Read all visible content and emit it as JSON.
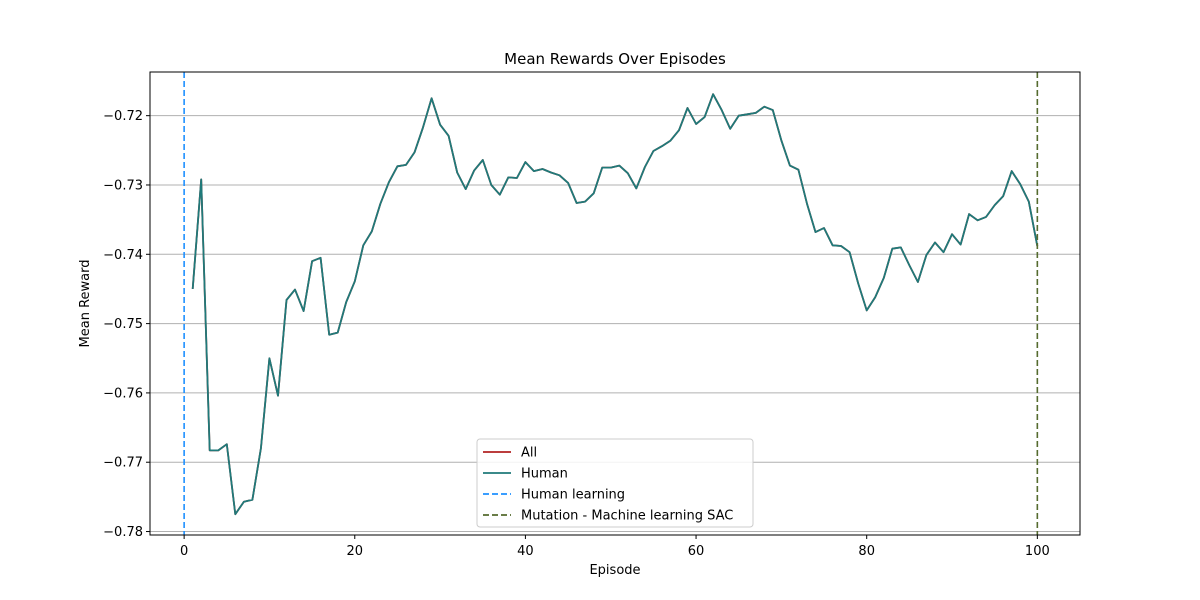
{
  "chart_data": {
    "type": "line",
    "title": "Mean Rewards Over Episodes",
    "xlabel": "Episode",
    "ylabel": "Mean Reward",
    "xlim": [
      -4,
      105
    ],
    "ylim": [
      -0.7805,
      -0.7137
    ],
    "xticks": [
      0,
      20,
      40,
      60,
      80,
      100
    ],
    "yticks": [
      -0.78,
      -0.77,
      -0.76,
      -0.75,
      -0.74,
      -0.73,
      -0.72
    ],
    "ytick_labels": [
      "−0.78",
      "−0.77",
      "−0.76",
      "−0.75",
      "−0.74",
      "−0.73",
      "−0.72"
    ],
    "grid": "horizontal",
    "legend_position": "lower center",
    "series": [
      {
        "name": "All",
        "color": "#b22222",
        "style": "solid",
        "x": [
          1,
          2,
          3,
          4,
          5,
          6,
          7,
          8,
          9,
          10,
          11,
          12,
          13,
          14,
          15,
          16,
          17,
          18,
          19,
          20,
          21,
          22,
          23,
          24,
          25,
          26,
          27,
          28,
          29,
          30,
          31,
          32,
          33,
          34,
          35,
          36,
          37,
          38,
          39,
          40,
          41,
          42,
          43,
          44,
          45,
          46,
          47,
          48,
          49,
          50,
          51,
          52,
          53,
          54,
          55,
          56,
          57,
          58,
          59,
          60,
          61,
          62,
          63,
          64,
          65,
          66,
          67,
          68,
          69,
          70,
          71,
          72,
          73,
          74,
          75,
          76,
          77,
          78,
          79,
          80,
          81,
          82,
          83,
          84,
          85,
          86,
          87,
          88,
          89,
          90,
          91,
          92,
          93,
          94,
          95,
          96,
          97,
          98,
          99,
          100
        ],
        "y": [
          -0.745,
          -0.7292,
          -0.7683,
          -0.7683,
          -0.7674,
          -0.7775,
          -0.7757,
          -0.7754,
          -0.768,
          -0.755,
          -0.7604,
          -0.7466,
          -0.7451,
          -0.7482,
          -0.741,
          -0.7405,
          -0.7516,
          -0.7513,
          -0.7469,
          -0.7439,
          -0.7387,
          -0.7367,
          -0.7327,
          -0.7296,
          -0.7273,
          -0.7271,
          -0.7253,
          -0.7217,
          -0.7175,
          -0.7213,
          -0.7229,
          -0.7282,
          -0.7306,
          -0.7279,
          -0.7264,
          -0.73,
          -0.7314,
          -0.7289,
          -0.729,
          -0.7267,
          -0.728,
          -0.7277,
          -0.7282,
          -0.7286,
          -0.7297,
          -0.7326,
          -0.7324,
          -0.7312,
          -0.7275,
          -0.7275,
          -0.7272,
          -0.7283,
          -0.7305,
          -0.7274,
          -0.7251,
          -0.7244,
          -0.7236,
          -0.7221,
          -0.7189,
          -0.7212,
          -0.7202,
          -0.7169,
          -0.7192,
          -0.7219,
          -0.72,
          -0.7198,
          -0.7196,
          -0.7187,
          -0.7192,
          -0.7236,
          -0.7272,
          -0.7278,
          -0.7327,
          -0.7368,
          -0.7362,
          -0.7387,
          -0.7388,
          -0.7397,
          -0.7442,
          -0.7481,
          -0.7462,
          -0.7434,
          -0.7392,
          -0.739,
          -0.7416,
          -0.744,
          -0.7401,
          -0.7383,
          -0.7397,
          -0.7371,
          -0.7386,
          -0.7342,
          -0.7351,
          -0.7346,
          -0.7329,
          -0.7316,
          -0.728,
          -0.7299,
          -0.7324,
          -0.7388
        ]
      },
      {
        "name": "Human",
        "color": "#1f7a7a",
        "style": "solid",
        "x": [
          1,
          2,
          3,
          4,
          5,
          6,
          7,
          8,
          9,
          10,
          11,
          12,
          13,
          14,
          15,
          16,
          17,
          18,
          19,
          20,
          21,
          22,
          23,
          24,
          25,
          26,
          27,
          28,
          29,
          30,
          31,
          32,
          33,
          34,
          35,
          36,
          37,
          38,
          39,
          40,
          41,
          42,
          43,
          44,
          45,
          46,
          47,
          48,
          49,
          50,
          51,
          52,
          53,
          54,
          55,
          56,
          57,
          58,
          59,
          60,
          61,
          62,
          63,
          64,
          65,
          66,
          67,
          68,
          69,
          70,
          71,
          72,
          73,
          74,
          75,
          76,
          77,
          78,
          79,
          80,
          81,
          82,
          83,
          84,
          85,
          86,
          87,
          88,
          89,
          90,
          91,
          92,
          93,
          94,
          95,
          96,
          97,
          98,
          99,
          100
        ],
        "y": [
          -0.745,
          -0.7292,
          -0.7683,
          -0.7683,
          -0.7674,
          -0.7775,
          -0.7757,
          -0.7754,
          -0.768,
          -0.755,
          -0.7604,
          -0.7466,
          -0.7451,
          -0.7482,
          -0.741,
          -0.7405,
          -0.7516,
          -0.7513,
          -0.7469,
          -0.7439,
          -0.7387,
          -0.7367,
          -0.7327,
          -0.7296,
          -0.7273,
          -0.7271,
          -0.7253,
          -0.7217,
          -0.7175,
          -0.7213,
          -0.7229,
          -0.7282,
          -0.7306,
          -0.7279,
          -0.7264,
          -0.73,
          -0.7314,
          -0.7289,
          -0.729,
          -0.7267,
          -0.728,
          -0.7277,
          -0.7282,
          -0.7286,
          -0.7297,
          -0.7326,
          -0.7324,
          -0.7312,
          -0.7275,
          -0.7275,
          -0.7272,
          -0.7283,
          -0.7305,
          -0.7274,
          -0.7251,
          -0.7244,
          -0.7236,
          -0.7221,
          -0.7189,
          -0.7212,
          -0.7202,
          -0.7169,
          -0.7192,
          -0.7219,
          -0.72,
          -0.7198,
          -0.7196,
          -0.7187,
          -0.7192,
          -0.7236,
          -0.7272,
          -0.7278,
          -0.7327,
          -0.7368,
          -0.7362,
          -0.7387,
          -0.7388,
          -0.7397,
          -0.7442,
          -0.7481,
          -0.7462,
          -0.7434,
          -0.7392,
          -0.739,
          -0.7416,
          -0.744,
          -0.7401,
          -0.7383,
          -0.7397,
          -0.7371,
          -0.7386,
          -0.7342,
          -0.7351,
          -0.7346,
          -0.7329,
          -0.7316,
          -0.728,
          -0.7299,
          -0.7324,
          -0.7388
        ]
      }
    ],
    "vlines": [
      {
        "name": "Human learning",
        "x": 0,
        "color": "#1e90ff",
        "style": "dashed"
      },
      {
        "name": "Mutation - Machine learning SAC",
        "x": 100,
        "color": "#556b2f",
        "style": "dashed"
      }
    ]
  }
}
